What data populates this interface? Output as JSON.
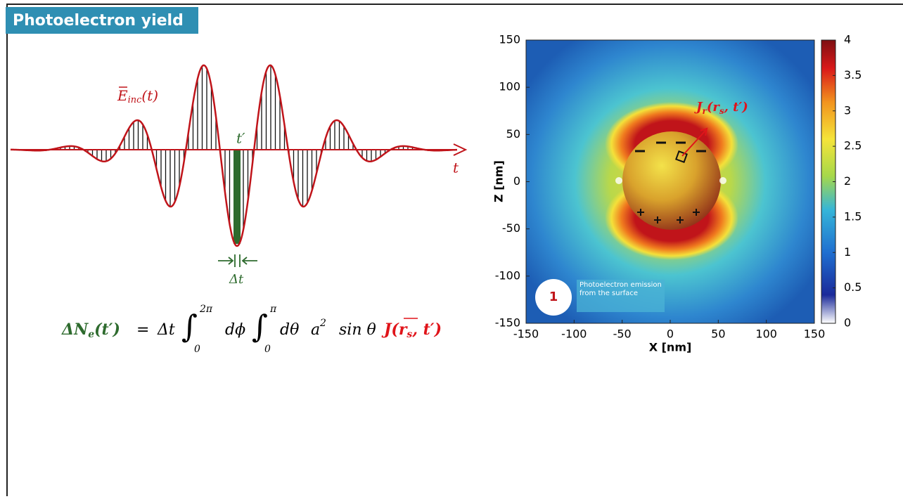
{
  "header": {
    "title": "Photoelectron yield"
  },
  "pulse": {
    "field_base": "E",
    "field_sub": "inc",
    "field_arg": "(t)",
    "time_label": "t",
    "instant_label": "t′",
    "interval_label": "Δt"
  },
  "formula": {
    "lhs": "ΔN",
    "lhs_sub": "e",
    "lhs_arg": "(t′)",
    "eq": "=",
    "dt": "Δt",
    "integral": "∫",
    "int1_upper": "2π",
    "int1_lower": "0",
    "dphi": "dϕ",
    "int2_upper": "π",
    "int2_lower": "0",
    "dtheta": "dθ",
    "a": "a",
    "a_exp": "2",
    "sin": "sin θ",
    "current": "J(r",
    "current_sub": "s",
    "current_tail": ", t′)"
  },
  "heatmap": {
    "xlabel": "X [nm]",
    "ylabel": "Z [nm]",
    "xlim": [
      -150,
      150
    ],
    "ylim": [
      -150,
      150
    ],
    "xticks": [
      -150,
      -100,
      -50,
      0,
      50,
      100,
      150
    ],
    "yticks": [
      -150,
      -100,
      -50,
      0,
      50,
      100,
      150
    ],
    "colorbar_lim": [
      0,
      4
    ],
    "colorbar_ticks": [
      0,
      0.5,
      1,
      1.5,
      2,
      2.5,
      3,
      3.5,
      4
    ],
    "current_base": "J",
    "current_sub": "r",
    "current_arg": "(r",
    "current_arg_sub": "s",
    "current_tail": ", t′)",
    "badge_number": "1",
    "badge_text": "Photoelectron emission from the surface"
  }
}
